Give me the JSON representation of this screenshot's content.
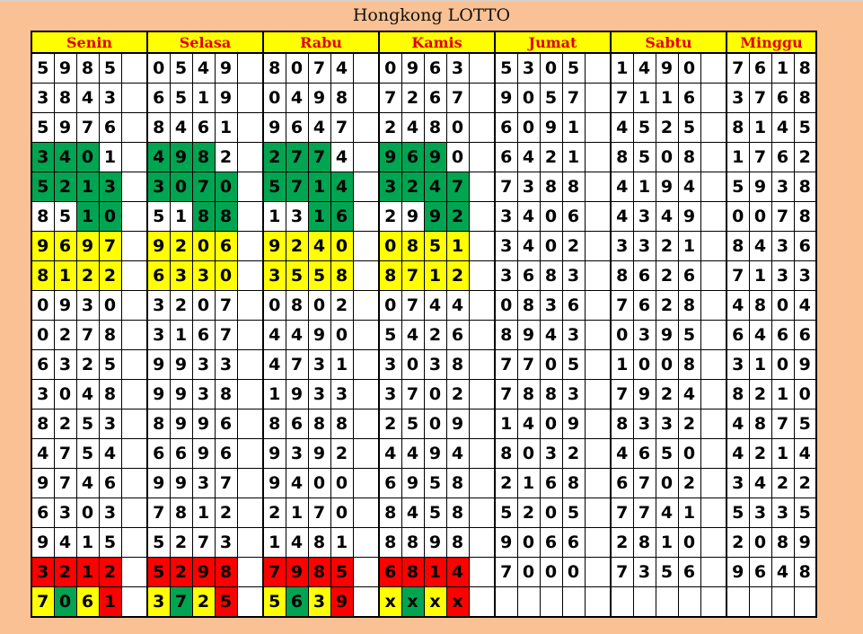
{
  "title": "Hongkong LOTTO",
  "colors": {
    "g": "#00a551",
    "y": "#ffff00",
    "r": "#ff0000",
    "w": "#ffffff",
    "header_bg": "#ffff00",
    "header_text": "#e00000",
    "page_bg": "#f9c194"
  },
  "days": [
    {
      "name": "Senin",
      "rows": [
        "5985",
        "3843",
        "5976",
        "3401",
        "5213",
        "8510",
        "9697",
        "8122",
        "0930",
        "0278",
        "6325",
        "3048",
        "8253",
        "4754",
        "9746",
        "6303",
        "9415",
        "3212",
        "7061"
      ],
      "colors": [
        "",
        "",
        "",
        "gggw",
        "gggg",
        "wwgg",
        "yyyy",
        "yyyy",
        "",
        "",
        "",
        "",
        "",
        "",
        "",
        "",
        "",
        "rrrr",
        "ygyr"
      ]
    },
    {
      "name": "Selasa",
      "rows": [
        "0549",
        "6519",
        "8461",
        "4982",
        "3070",
        "5188",
        "9206",
        "6330",
        "3207",
        "3167",
        "9933",
        "9938",
        "8996",
        "6696",
        "9937",
        "7812",
        "5273",
        "5298",
        "3725"
      ],
      "colors": [
        "",
        "",
        "",
        "gggw",
        "gggg",
        "wwgg",
        "yyyy",
        "yyyy",
        "",
        "",
        "",
        "",
        "",
        "",
        "",
        "",
        "",
        "rrrr",
        "ygyr"
      ]
    },
    {
      "name": "Rabu",
      "rows": [
        "8074",
        "0498",
        "9647",
        "2774",
        "5714",
        "1316",
        "9240",
        "3558",
        "0802",
        "4490",
        "4731",
        "1933",
        "8688",
        "9392",
        "9400",
        "2170",
        "1481",
        "7985",
        "5639"
      ],
      "colors": [
        "",
        "",
        "",
        "gggw",
        "gggg",
        "wwgg",
        "yyyy",
        "yyyy",
        "",
        "",
        "",
        "",
        "",
        "",
        "",
        "",
        "",
        "rrrr",
        "ygyr"
      ]
    },
    {
      "name": "Kamis",
      "rows": [
        "0963",
        "7267",
        "2480",
        "9690",
        "3247",
        "2992",
        "0851",
        "8712",
        "0744",
        "5426",
        "3038",
        "3702",
        "2509",
        "4494",
        "6958",
        "8458",
        "8898",
        "6814",
        "xxxx"
      ],
      "colors": [
        "",
        "",
        "",
        "gggw",
        "gggg",
        "wwgg",
        "yyyy",
        "yyyy",
        "",
        "",
        "",
        "",
        "",
        "",
        "",
        "",
        "",
        "rrrr",
        "ygyr"
      ]
    },
    {
      "name": "Jumat",
      "rows": [
        "5305",
        "9057",
        "6091",
        "6421",
        "7388",
        "3406",
        "3402",
        "3683",
        "0836",
        "8943",
        "7705",
        "7883",
        "1409",
        "8032",
        "2168",
        "5205",
        "9066",
        "7000",
        ""
      ],
      "colors": []
    },
    {
      "name": "Sabtu",
      "rows": [
        "1490",
        "7116",
        "4525",
        "8508",
        "4194",
        "4349",
        "3321",
        "8626",
        "7628",
        "0395",
        "1008",
        "7924",
        "8332",
        "4650",
        "6702",
        "7741",
        "2810",
        "7356",
        ""
      ],
      "colors": []
    },
    {
      "name": "Minggu",
      "rows": [
        "7618",
        "3768",
        "8145",
        "1762",
        "5938",
        "0078",
        "8436",
        "7133",
        "4804",
        "6466",
        "3109",
        "8210",
        "4875",
        "4214",
        "3422",
        "5335",
        "2089",
        "9648",
        ""
      ],
      "colors": []
    }
  ]
}
